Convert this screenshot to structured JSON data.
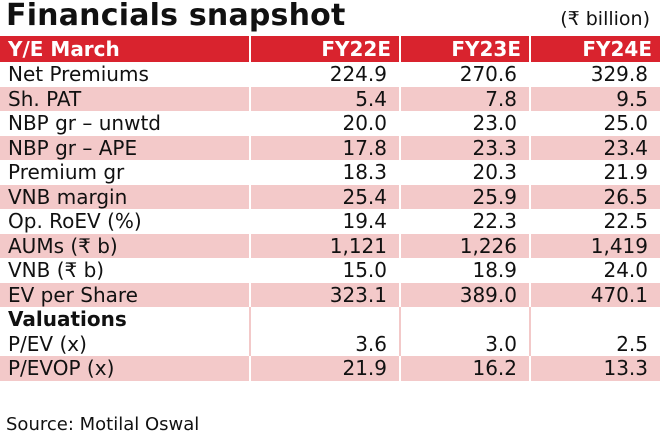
{
  "title": "Financials snapshot",
  "unit": "(₹ billion)",
  "headers": [
    "Y/E March",
    "FY22E",
    "FY23E",
    "FY24E"
  ],
  "rows": [
    {
      "label": "Net Premiums",
      "values": [
        "224.9",
        "270.6",
        "329.8"
      ]
    },
    {
      "label": "Sh. PAT",
      "values": [
        "5.4",
        "7.8",
        "9.5"
      ]
    },
    {
      "label": "NBP gr – unwtd",
      "values": [
        "20.0",
        "23.0",
        "25.0"
      ]
    },
    {
      "label": "NBP gr – APE",
      "values": [
        "17.8",
        "23.3",
        "23.4"
      ]
    },
    {
      "label": "Premium gr",
      "values": [
        "18.3",
        "20.3",
        "21.9"
      ]
    },
    {
      "label": "VNB margin",
      "values": [
        "25.4",
        "25.9",
        "26.5"
      ]
    },
    {
      "label": "Op. RoEV (%)",
      "values": [
        "19.4",
        "22.3",
        "22.5"
      ]
    },
    {
      "label": "AUMs (₹ b)",
      "values": [
        "1,121",
        "1,226",
        "1,419"
      ]
    },
    {
      "label": "VNB (₹ b)",
      "values": [
        "15.0",
        "18.9",
        "24.0"
      ]
    },
    {
      "label": "EV per Share",
      "values": [
        "323.1",
        "389.0",
        "470.1"
      ]
    }
  ],
  "section_label": "Valuations",
  "valuation_rows": [
    {
      "label": "P/EV (x)",
      "values": [
        "3.6",
        "3.0",
        "2.5"
      ]
    },
    {
      "label": "P/EVOP (x)",
      "values": [
        "21.9",
        "16.2",
        "13.3"
      ]
    }
  ],
  "source": "Source: Motilal Oswal"
}
